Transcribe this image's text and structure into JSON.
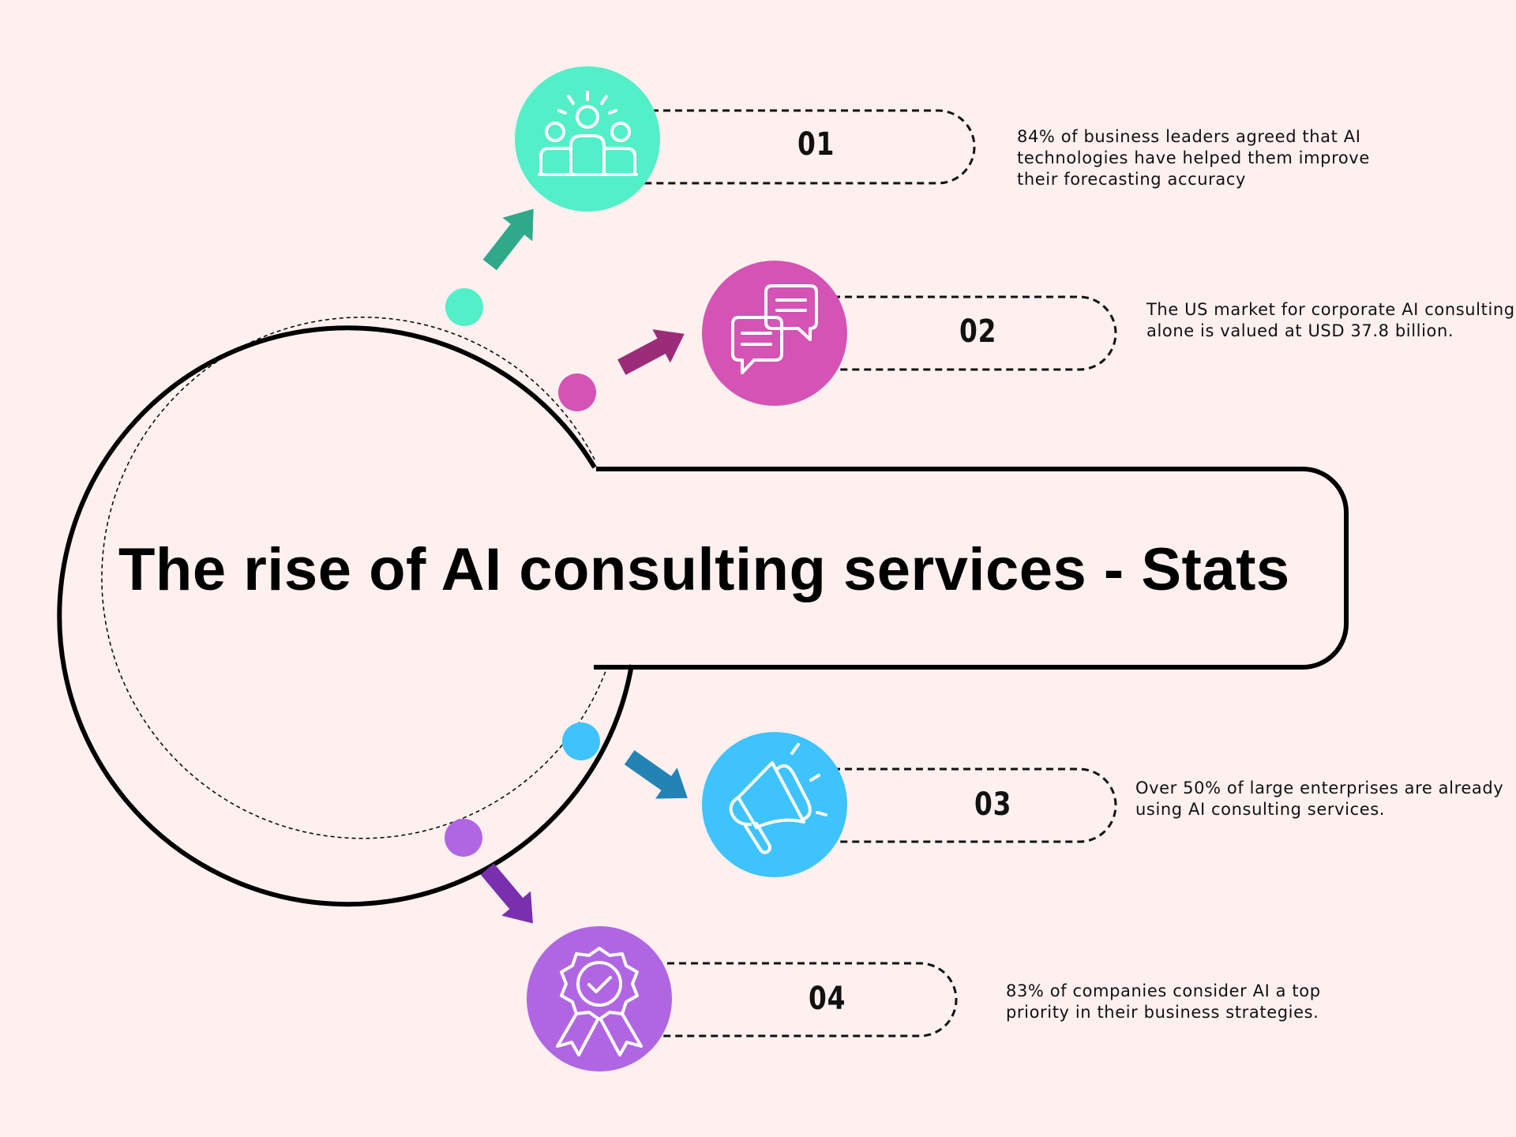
{
  "title": "The rise of AI consulting services - Stats",
  "colors": {
    "background": "#fdf0ef",
    "item1": "#52efc8",
    "item1_arrow": "#2fa98a",
    "item2": "#d453b4",
    "item2_arrow": "#9b2c78",
    "item3": "#3ec3fd",
    "item3_arrow": "#2383b5",
    "item4": "#b066e3",
    "item4_arrow": "#7a2fae"
  },
  "stats": [
    {
      "number": "01",
      "icon": "people-group-icon",
      "text": "84% of business leaders agreed that AI technologies have helped them improve their forecasting accuracy"
    },
    {
      "number": "02",
      "icon": "chat-bubbles-icon",
      "text": "The US market for corporate AI consulting alone is valued at USD 37.8 billion."
    },
    {
      "number": "03",
      "icon": "megaphone-icon",
      "text": "Over 50% of large enterprises are already using AI consulting services."
    },
    {
      "number": "04",
      "icon": "award-ribbon-icon",
      "text": "83% of companies consider AI a top priority in their business strategies."
    }
  ]
}
